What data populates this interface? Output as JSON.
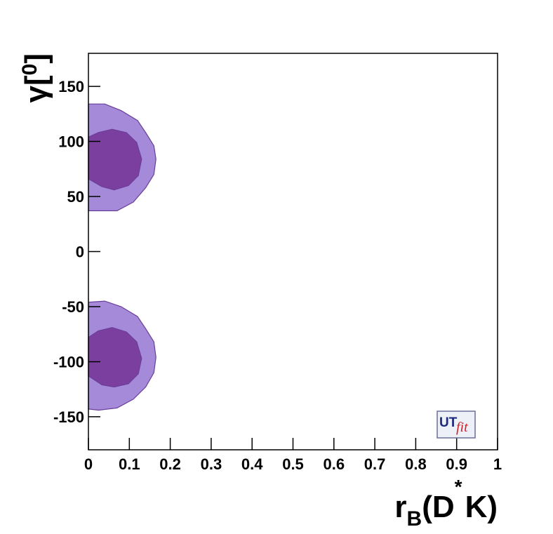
{
  "chart_data": {
    "type": "contour",
    "x_label": [
      "r",
      "B",
      "(D",
      "*",
      "K)"
    ],
    "y_label": [
      "γ",
      "[",
      "0",
      "]"
    ],
    "logo": [
      "UT",
      "fit"
    ],
    "xlim": [
      0,
      1
    ],
    "ylim": [
      -180,
      180
    ],
    "xticks": [
      0,
      0.1,
      0.2,
      0.3,
      0.4,
      0.5,
      0.6,
      0.7,
      0.8,
      0.9,
      1
    ],
    "yticks": [
      -150,
      -100,
      -50,
      0,
      50,
      100,
      150
    ],
    "regions": [
      {
        "color": "#a48ad8",
        "x": [
          0,
          0.04,
          0.08,
          0.12,
          0.14,
          0.16,
          0.165,
          0.16,
          0.14,
          0.11,
          0.07,
          0.025,
          0
        ],
        "y": [
          134,
          134,
          128,
          119,
          108,
          96,
          84,
          70,
          58,
          45,
          37,
          37,
          37
        ]
      },
      {
        "color": "#7b3fa0",
        "x": [
          0,
          0.024,
          0.058,
          0.093,
          0.118,
          0.13,
          0.122,
          0.098,
          0.063,
          0.033,
          0
        ],
        "y": [
          104,
          108,
          111,
          108,
          99,
          84,
          69,
          60,
          56,
          59,
          66
        ]
      },
      {
        "color": "#a48ad8",
        "x": [
          0,
          0.04,
          0.08,
          0.12,
          0.14,
          0.16,
          0.165,
          0.16,
          0.14,
          0.11,
          0.07,
          0.025,
          0
        ],
        "y": [
          -46,
          -45,
          -50,
          -59,
          -70,
          -82,
          -96,
          -110,
          -123,
          -134,
          -142,
          -144,
          -143
        ]
      },
      {
        "color": "#7b3fa0",
        "x": [
          0,
          0.024,
          0.058,
          0.093,
          0.118,
          0.13,
          0.122,
          0.098,
          0.063,
          0.033,
          0
        ],
        "y": [
          -78,
          -72,
          -69,
          -73,
          -82,
          -97,
          -111,
          -120,
          -123,
          -121,
          -113
        ]
      }
    ]
  }
}
